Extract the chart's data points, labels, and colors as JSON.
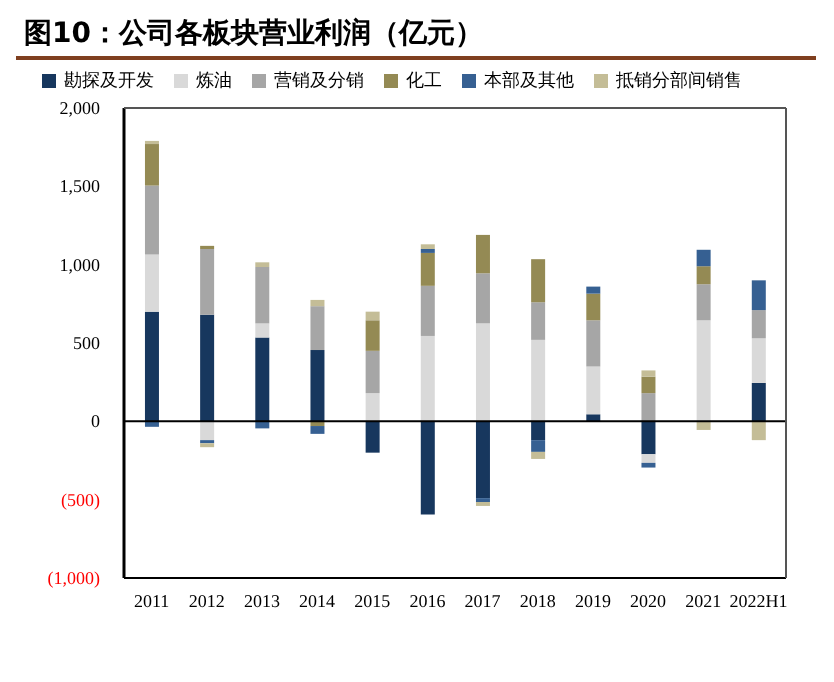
{
  "chart_data": {
    "type": "bar",
    "title": "图10：公司各板块营业利润（亿元）",
    "categories": [
      "2011",
      "2012",
      "2013",
      "2014",
      "2015",
      "2016",
      "2017",
      "2018",
      "2019",
      "2020",
      "2021",
      "2022H1"
    ],
    "stacked": true,
    "series": [
      {
        "name": "勘探及开发",
        "color": "#17375e",
        "values": [
          700,
          680,
          535,
          455,
          -200,
          -595,
          -490,
          -120,
          45,
          -210,
          null,
          245
        ]
      },
      {
        "name": "炼油",
        "color": "#d9d9d9",
        "values": [
          365,
          -120,
          90,
          null,
          180,
          545,
          625,
          520,
          305,
          -55,
          645,
          285
        ]
      },
      {
        "name": "营销及分销",
        "color": "#a6a6a6",
        "values": [
          440,
          420,
          360,
          280,
          270,
          320,
          320,
          240,
          295,
          180,
          230,
          180
        ]
      },
      {
        "name": "化工",
        "color": "#948a54",
        "values": [
          265,
          20,
          null,
          -30,
          195,
          210,
          245,
          275,
          170,
          105,
          115,
          null
        ]
      },
      {
        "name": "本部及其他",
        "color": "#366092",
        "values": [
          -35,
          -20,
          -45,
          -50,
          null,
          25,
          -25,
          -75,
          45,
          -30,
          105,
          190
        ]
      },
      {
        "name": "抵销分部间销售",
        "color": "#c4bd97",
        "values": [
          20,
          -25,
          30,
          40,
          55,
          30,
          -25,
          -45,
          null,
          40,
          -55,
          -120
        ]
      }
    ],
    "ylim": [
      -1000,
      2000
    ],
    "yticks": [
      {
        "value": -1000,
        "label": "(1,000)"
      },
      {
        "value": -500,
        "label": "(500)"
      },
      0,
      500,
      {
        "value": 1000,
        "label": "1,000"
      },
      {
        "value": 1500,
        "label": "1,500"
      },
      {
        "value": 2000,
        "label": "2,000"
      }
    ],
    "ref_lines": [
      {
        "axis": "y",
        "value": 0
      }
    ],
    "grid": false,
    "legend": "top"
  }
}
